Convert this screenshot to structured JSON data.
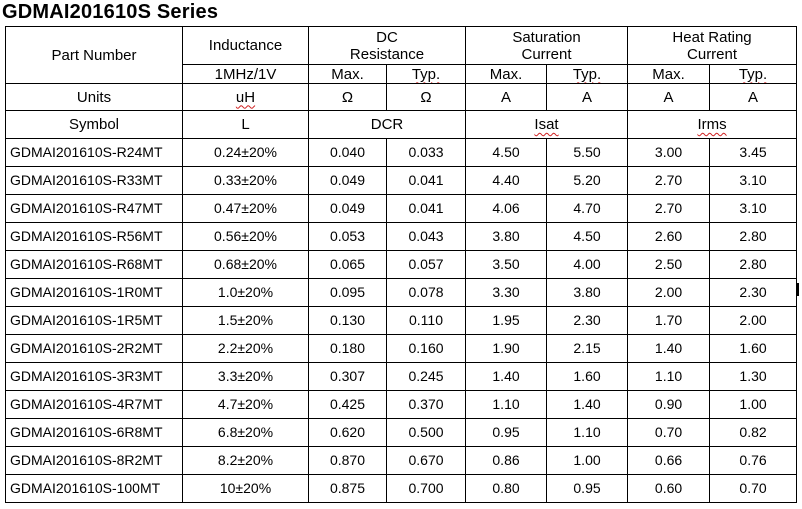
{
  "title": "GDMAI201610S Series",
  "headers": {
    "part_number": "Part Number",
    "inductance": "Inductance",
    "inductance_condition": "1MHz/1V",
    "dc_resistance_line1": "DC",
    "dc_resistance_line2": "Resistance",
    "saturation_line1": "Saturation",
    "saturation_line2": "Current",
    "heat_line1": "Heat Rating",
    "heat_line2": "Current",
    "max": "Max.",
    "typ": "Typ."
  },
  "units_row": {
    "label": "Units",
    "inductance": "uH",
    "dcr_max": "Ω",
    "dcr_typ": "Ω",
    "isat_max": "A",
    "isat_typ": "A",
    "irms_max": "A",
    "irms_typ": "A"
  },
  "symbol_row": {
    "label": "Symbol",
    "inductance": "L",
    "dcr": "DCR",
    "isat": "Isat",
    "irms": "Irms"
  },
  "rows": [
    {
      "part": "GDMAI201610S-R24MT",
      "inductance": "0.24±20%",
      "dcr_max": "0.040",
      "dcr_typ": "0.033",
      "isat_max": "4.50",
      "isat_typ": "5.50",
      "irms_max": "3.00",
      "irms_typ": "3.45"
    },
    {
      "part": "GDMAI201610S-R33MT",
      "inductance": "0.33±20%",
      "dcr_max": "0.049",
      "dcr_typ": "0.041",
      "isat_max": "4.40",
      "isat_typ": "5.20",
      "irms_max": "2.70",
      "irms_typ": "3.10"
    },
    {
      "part": "GDMAI201610S-R47MT",
      "inductance": "0.47±20%",
      "dcr_max": "0.049",
      "dcr_typ": "0.041",
      "isat_max": "4.06",
      "isat_typ": "4.70",
      "irms_max": "2.70",
      "irms_typ": "3.10"
    },
    {
      "part": "GDMAI201610S-R56MT",
      "inductance": "0.56±20%",
      "dcr_max": "0.053",
      "dcr_typ": "0.043",
      "isat_max": "3.80",
      "isat_typ": "4.50",
      "irms_max": "2.60",
      "irms_typ": "2.80"
    },
    {
      "part": "GDMAI201610S-R68MT",
      "inductance": "0.68±20%",
      "dcr_max": "0.065",
      "dcr_typ": "0.057",
      "isat_max": "3.50",
      "isat_typ": "4.00",
      "irms_max": "2.50",
      "irms_typ": "2.80"
    },
    {
      "part": "GDMAI201610S-1R0MT",
      "inductance": "1.0±20%",
      "dcr_max": "0.095",
      "dcr_typ": "0.078",
      "isat_max": "3.30",
      "isat_typ": "3.80",
      "irms_max": "2.00",
      "irms_typ": "2.30"
    },
    {
      "part": "GDMAI201610S-1R5MT",
      "inductance": "1.5±20%",
      "dcr_max": "0.130",
      "dcr_typ": "0.110",
      "isat_max": "1.95",
      "isat_typ": "2.30",
      "irms_max": "1.70",
      "irms_typ": "2.00"
    },
    {
      "part": "GDMAI201610S-2R2MT",
      "inductance": "2.2±20%",
      "dcr_max": "0.180",
      "dcr_typ": "0.160",
      "isat_max": "1.90",
      "isat_typ": "2.15",
      "irms_max": "1.40",
      "irms_typ": "1.60"
    },
    {
      "part": "GDMAI201610S-3R3MT",
      "inductance": "3.3±20%",
      "dcr_max": "0.307",
      "dcr_typ": "0.245",
      "isat_max": "1.40",
      "isat_typ": "1.60",
      "irms_max": "1.10",
      "irms_typ": "1.30"
    },
    {
      "part": "GDMAI201610S-4R7MT",
      "inductance": "4.7±20%",
      "dcr_max": "0.425",
      "dcr_typ": "0.370",
      "isat_max": "1.10",
      "isat_typ": "1.40",
      "irms_max": "0.90",
      "irms_typ": "1.00"
    },
    {
      "part": "GDMAI201610S-6R8MT",
      "inductance": "6.8±20%",
      "dcr_max": "0.620",
      "dcr_typ": "0.500",
      "isat_max": "0.95",
      "isat_typ": "1.10",
      "irms_max": "0.70",
      "irms_typ": "0.82"
    },
    {
      "part": "GDMAI201610S-8R2MT",
      "inductance": "8.2±20%",
      "dcr_max": "0.870",
      "dcr_typ": "0.670",
      "isat_max": "0.86",
      "isat_typ": "1.00",
      "irms_max": "0.66",
      "irms_typ": "0.76"
    },
    {
      "part": "GDMAI201610S-100MT",
      "inductance": "10±20%",
      "dcr_max": "0.875",
      "dcr_typ": "0.700",
      "isat_max": "0.80",
      "isat_typ": "0.95",
      "irms_max": "0.60",
      "irms_typ": "0.70"
    }
  ]
}
